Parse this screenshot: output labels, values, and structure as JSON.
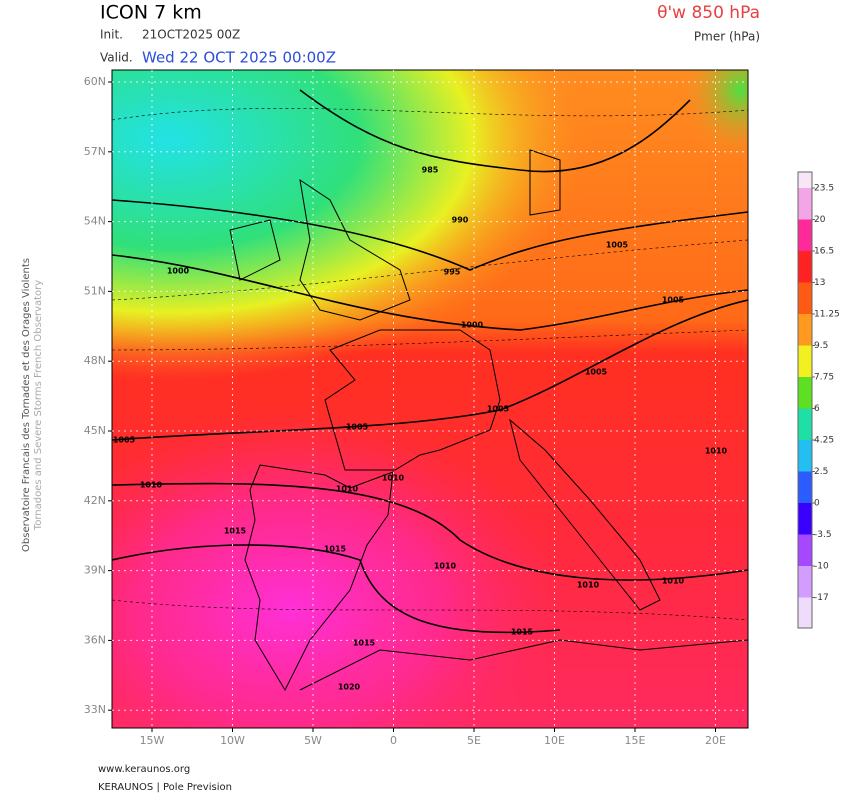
{
  "header": {
    "model": "ICON 7 km",
    "init_label": "Init.",
    "init": "21OCT2025 00Z",
    "valid_label": "Valid.",
    "valid": "Wed 22 OCT 2025 00:00Z",
    "parameter": "θ'w 850 hPa",
    "overlay": "Pmer (hPa)"
  },
  "map": {
    "lat_labels": [
      "60N",
      "57N",
      "54N",
      "51N",
      "48N",
      "45N",
      "42N",
      "39N",
      "36N",
      "33N"
    ],
    "lon_labels": [
      "15W",
      "10W",
      "5W",
      "0",
      "5E",
      "10E",
      "15E",
      "20E"
    ],
    "isobar_labels": [
      "985",
      "990",
      "995",
      "1000",
      "1000",
      "1005",
      "1005",
      "1005",
      "1005",
      "1005",
      "1005",
      "1010",
      "1010",
      "1010",
      "1010",
      "1010",
      "1010",
      "1010",
      "1015",
      "1015",
      "1015",
      "1015",
      "1020"
    ]
  },
  "colorbar": {
    "ticks": [
      23.5,
      20,
      16.5,
      13,
      11.25,
      9.5,
      7.75,
      6,
      4.25,
      2.5,
      0,
      -3.5,
      -10,
      -17
    ],
    "colors": [
      "#f6e6f6",
      "#f2a6e6",
      "#ff2a9a",
      "#ff2222",
      "#ff5a14",
      "#ff9a1e",
      "#f2f020",
      "#5ee022",
      "#1ee0a6",
      "#22bff0",
      "#2a5cff",
      "#3a00ff",
      "#a548ff",
      "#d39cff",
      "#eedcfa"
    ]
  },
  "sidebar": {
    "french": "Observatoire Francais des Tornades et des Orages Violents",
    "english": "Tornadoes and Severe Storms French Observatory"
  },
  "footer": {
    "url": "www.keraunos.org",
    "credit": "KERAUNOS | Pole Prevision"
  }
}
